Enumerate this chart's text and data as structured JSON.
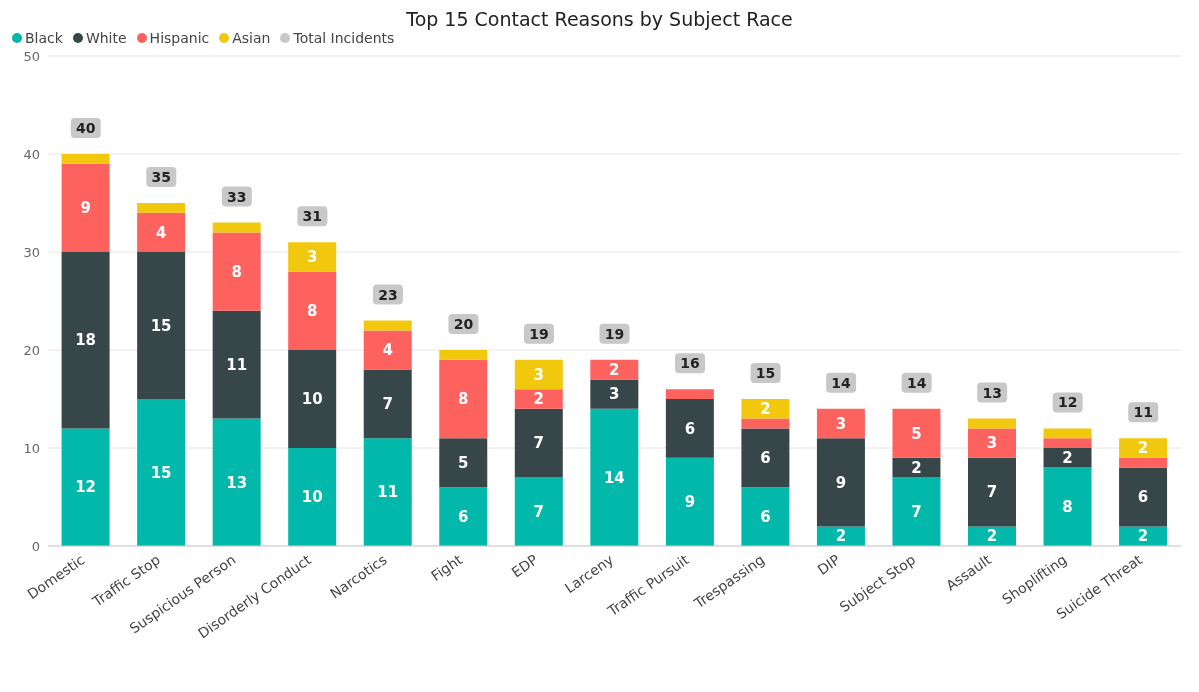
{
  "chart_data": {
    "type": "bar",
    "title": "Top 15 Contact Reasons by Subject Race",
    "stacked": true,
    "legend": "top left",
    "grid": "y",
    "ylim": [
      0,
      50
    ],
    "yticks": [
      0,
      10,
      20,
      30,
      40,
      50
    ],
    "categories": [
      "Domestic",
      "Traffic Stop",
      "Suspicious Person",
      "Disorderly Conduct",
      "Narcotics",
      "Fight",
      "EDP",
      "Larceny",
      "Traffic Pursuit",
      "Trespassing",
      "DIP",
      "Subject Stop",
      "Assault",
      "Shoplifting",
      "Suicide Threat"
    ],
    "series": [
      {
        "name": "Black",
        "color": "#01b8aa",
        "values": [
          12,
          15,
          13,
          10,
          11,
          6,
          7,
          14,
          9,
          6,
          2,
          7,
          2,
          8,
          2
        ],
        "value_labels": [
          "12",
          "15",
          "13",
          "10",
          "11",
          "6",
          "7",
          "14",
          "9",
          "6",
          "2",
          "7",
          "2",
          "8",
          "2"
        ]
      },
      {
        "name": "White",
        "color": "#374649",
        "values": [
          18,
          15,
          11,
          10,
          7,
          5,
          7,
          3,
          6,
          6,
          9,
          2,
          7,
          2,
          6
        ],
        "value_labels": [
          "18",
          "15",
          "11",
          "10",
          "7",
          "5",
          "7",
          "3",
          "6",
          "6",
          "9",
          "2",
          "7",
          "2",
          "6"
        ]
      },
      {
        "name": "Hispanic",
        "color": "#fd625e",
        "values": [
          9,
          4,
          8,
          8,
          4,
          8,
          2,
          2,
          1,
          1,
          3,
          5,
          3,
          1,
          1
        ],
        "value_labels": [
          "9",
          "4",
          "8",
          "8",
          "4",
          "8",
          "2",
          "2",
          null,
          null,
          "3",
          "5",
          "3",
          null,
          null
        ]
      },
      {
        "name": "Asian",
        "color": "#f2c80f",
        "values": [
          1,
          1,
          1,
          3,
          1,
          1,
          3,
          null,
          null,
          2,
          null,
          null,
          1,
          1,
          2
        ],
        "value_labels": [
          null,
          null,
          null,
          "3",
          null,
          null,
          "3",
          null,
          null,
          "2",
          null,
          null,
          null,
          null,
          "2"
        ]
      },
      {
        "name": "Total Incidents",
        "type": "line",
        "color": "#c8c8c8",
        "values": [
          null,
          null,
          null,
          null,
          null,
          null,
          null,
          null,
          null,
          null,
          null,
          null,
          null,
          null,
          null
        ]
      }
    ],
    "totals": [
      "40",
      "35",
      "33",
      "31",
      "23",
      "20",
      "19",
      "19",
      "16",
      "15",
      "14",
      "14",
      "13",
      "12",
      "11"
    ]
  }
}
